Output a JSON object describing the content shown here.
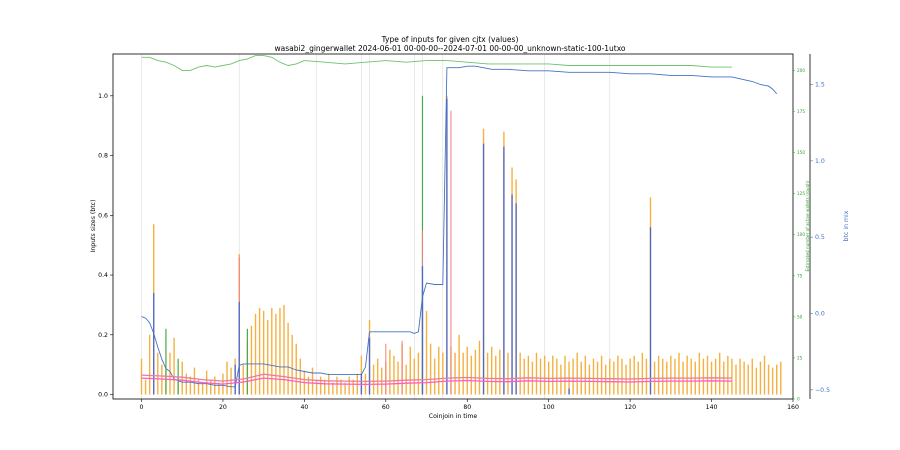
{
  "chart_data": {
    "type": "bar",
    "title": "Type of inputs for given cjtx (values)",
    "subtitle": "wasabi2_gingerwallet 2024-06-01 00-00-00--2024-07-01 00-00-00_unknown-static-100-1utxo",
    "xlabel": "Coinjoin in time",
    "ylabel": "Inputs sizes (btc)",
    "y2label": "Estimated number of active wallets (rough)",
    "y3label": "btc in mix",
    "xlim": [
      -7,
      160
    ],
    "ylim": [
      -0.015,
      1.14
    ],
    "y2lim": [
      0,
      210
    ],
    "y3lim": [
      -0.56,
      1.7
    ],
    "x_ticks": [
      0,
      20,
      40,
      60,
      80,
      100,
      120,
      140,
      160
    ],
    "y_ticks": [
      0.0,
      0.2,
      0.4,
      0.6,
      0.8,
      1.0
    ],
    "y2_ticks": [
      0,
      25,
      50,
      75,
      100,
      125,
      150,
      175,
      200
    ],
    "y3_ticks": [
      -0.5,
      0.0,
      0.5,
      1.0,
      1.5
    ],
    "vlines": [
      0,
      24,
      43,
      54,
      56,
      67,
      69,
      74,
      99,
      115
    ],
    "bars_orange": [
      {
        "x": 0,
        "v": 0.12
      },
      {
        "x": 1,
        "v": 0.05
      },
      {
        "x": 2,
        "v": 0.2
      },
      {
        "x": 3,
        "v": 0.57
      },
      {
        "x": 4,
        "v": 0.14
      },
      {
        "x": 5,
        "v": 0.1
      },
      {
        "x": 6,
        "v": 0.08
      },
      {
        "x": 7,
        "v": 0.14
      },
      {
        "x": 8,
        "v": 0.19
      },
      {
        "x": 9,
        "v": 0.06
      },
      {
        "x": 10,
        "v": 0.11
      },
      {
        "x": 11,
        "v": 0.07
      },
      {
        "x": 12,
        "v": 0.06
      },
      {
        "x": 13,
        "v": 0.09
      },
      {
        "x": 14,
        "v": 0.05
      },
      {
        "x": 15,
        "v": 0.04
      },
      {
        "x": 16,
        "v": 0.08
      },
      {
        "x": 17,
        "v": 0.05
      },
      {
        "x": 18,
        "v": 0.06
      },
      {
        "x": 19,
        "v": 0.04
      },
      {
        "x": 20,
        "v": 0.07
      },
      {
        "x": 21,
        "v": 0.11
      },
      {
        "x": 22,
        "v": 0.09
      },
      {
        "x": 23,
        "v": 0.12
      },
      {
        "x": 24,
        "v": 0.47
      },
      {
        "x": 25,
        "v": 0.1
      },
      {
        "x": 26,
        "v": 0.18
      },
      {
        "x": 27,
        "v": 0.23
      },
      {
        "x": 28,
        "v": 0.27
      },
      {
        "x": 29,
        "v": 0.29
      },
      {
        "x": 30,
        "v": 0.28
      },
      {
        "x": 31,
        "v": 0.25
      },
      {
        "x": 32,
        "v": 0.29
      },
      {
        "x": 33,
        "v": 0.27
      },
      {
        "x": 34,
        "v": 0.29
      },
      {
        "x": 35,
        "v": 0.3
      },
      {
        "x": 36,
        "v": 0.24
      },
      {
        "x": 37,
        "v": 0.2
      },
      {
        "x": 38,
        "v": 0.17
      },
      {
        "x": 39,
        "v": 0.12
      },
      {
        "x": 40,
        "v": 0.08
      },
      {
        "x": 41,
        "v": 0.06
      },
      {
        "x": 42,
        "v": 0.09
      },
      {
        "x": 43,
        "v": 0.05
      },
      {
        "x": 44,
        "v": 0.06
      },
      {
        "x": 45,
        "v": 0.05
      },
      {
        "x": 46,
        "v": 0.07
      },
      {
        "x": 47,
        "v": 0.04
      },
      {
        "x": 48,
        "v": 0.06
      },
      {
        "x": 49,
        "v": 0.05
      },
      {
        "x": 50,
        "v": 0.04
      },
      {
        "x": 51,
        "v": 0.06
      },
      {
        "x": 52,
        "v": 0.05
      },
      {
        "x": 53,
        "v": 0.07
      },
      {
        "x": 54,
        "v": 0.13
      },
      {
        "x": 55,
        "v": 0.07
      },
      {
        "x": 56,
        "v": 0.25
      },
      {
        "x": 57,
        "v": 0.1
      },
      {
        "x": 58,
        "v": 0.12
      },
      {
        "x": 59,
        "v": 0.09
      },
      {
        "x": 60,
        "v": 0.11
      },
      {
        "x": 61,
        "v": 0.15
      },
      {
        "x": 62,
        "v": 0.13
      },
      {
        "x": 63,
        "v": 0.11
      },
      {
        "x": 64,
        "v": 0.17
      },
      {
        "x": 65,
        "v": 0.1
      },
      {
        "x": 66,
        "v": 0.16
      },
      {
        "x": 67,
        "v": 0.12
      },
      {
        "x": 68,
        "v": 0.14
      },
      {
        "x": 69,
        "v": 0.35
      },
      {
        "x": 70,
        "v": 0.28
      },
      {
        "x": 71,
        "v": 0.17
      },
      {
        "x": 72,
        "v": 0.12
      },
      {
        "x": 73,
        "v": 0.16
      },
      {
        "x": 74,
        "v": 0.14
      },
      {
        "x": 75,
        "v": 1.0
      },
      {
        "x": 76,
        "v": 0.16
      },
      {
        "x": 77,
        "v": 0.14
      },
      {
        "x": 78,
        "v": 0.2
      },
      {
        "x": 79,
        "v": 0.14
      },
      {
        "x": 80,
        "v": 0.16
      },
      {
        "x": 81,
        "v": 0.13
      },
      {
        "x": 82,
        "v": 0.15
      },
      {
        "x": 83,
        "v": 0.18
      },
      {
        "x": 84,
        "v": 0.89
      },
      {
        "x": 85,
        "v": 0.14
      },
      {
        "x": 86,
        "v": 0.16
      },
      {
        "x": 87,
        "v": 0.13
      },
      {
        "x": 88,
        "v": 0.15
      },
      {
        "x": 89,
        "v": 0.88
      },
      {
        "x": 90,
        "v": 0.14
      },
      {
        "x": 91,
        "v": 0.76
      },
      {
        "x": 92,
        "v": 0.72
      },
      {
        "x": 93,
        "v": 0.14
      },
      {
        "x": 94,
        "v": 0.12
      },
      {
        "x": 95,
        "v": 0.13
      },
      {
        "x": 96,
        "v": 0.11
      },
      {
        "x": 97,
        "v": 0.14
      },
      {
        "x": 98,
        "v": 0.12
      },
      {
        "x": 99,
        "v": 0.13
      },
      {
        "x": 100,
        "v": 0.11
      },
      {
        "x": 101,
        "v": 0.13
      },
      {
        "x": 102,
        "v": 0.12
      },
      {
        "x": 103,
        "v": 0.1
      },
      {
        "x": 104,
        "v": 0.13
      },
      {
        "x": 105,
        "v": 0.11
      },
      {
        "x": 106,
        "v": 0.12
      },
      {
        "x": 107,
        "v": 0.14
      },
      {
        "x": 108,
        "v": 0.11
      },
      {
        "x": 109,
        "v": 0.13
      },
      {
        "x": 110,
        "v": 0.1
      },
      {
        "x": 111,
        "v": 0.12
      },
      {
        "x": 112,
        "v": 0.11
      },
      {
        "x": 113,
        "v": 0.13
      },
      {
        "x": 114,
        "v": 0.1
      },
      {
        "x": 115,
        "v": 0.12
      },
      {
        "x": 116,
        "v": 0.11
      },
      {
        "x": 117,
        "v": 0.13
      },
      {
        "x": 118,
        "v": 0.12
      },
      {
        "x": 119,
        "v": 0.1
      },
      {
        "x": 120,
        "v": 0.12
      },
      {
        "x": 121,
        "v": 0.13
      },
      {
        "x": 122,
        "v": 0.11
      },
      {
        "x": 123,
        "v": 0.14
      },
      {
        "x": 124,
        "v": 0.12
      },
      {
        "x": 125,
        "v": 0.66
      },
      {
        "x": 126,
        "v": 0.11
      },
      {
        "x": 127,
        "v": 0.13
      },
      {
        "x": 128,
        "v": 0.12
      },
      {
        "x": 129,
        "v": 0.11
      },
      {
        "x": 130,
        "v": 0.13
      },
      {
        "x": 131,
        "v": 0.12
      },
      {
        "x": 132,
        "v": 0.14
      },
      {
        "x": 133,
        "v": 0.11
      },
      {
        "x": 134,
        "v": 0.13
      },
      {
        "x": 135,
        "v": 0.12
      },
      {
        "x": 136,
        "v": 0.11
      },
      {
        "x": 137,
        "v": 0.14
      },
      {
        "x": 138,
        "v": 0.12
      },
      {
        "x": 139,
        "v": 0.13
      },
      {
        "x": 140,
        "v": 0.11
      },
      {
        "x": 141,
        "v": 0.12
      },
      {
        "x": 142,
        "v": 0.14
      },
      {
        "x": 143,
        "v": 0.11
      },
      {
        "x": 144,
        "v": 0.13
      },
      {
        "x": 145,
        "v": 0.12
      },
      {
        "x": 146,
        "v": 0.1
      },
      {
        "x": 147,
        "v": 0.12
      },
      {
        "x": 148,
        "v": 0.11
      },
      {
        "x": 149,
        "v": 0.1
      },
      {
        "x": 150,
        "v": 0.12
      },
      {
        "x": 151,
        "v": 0.09
      },
      {
        "x": 152,
        "v": 0.11
      },
      {
        "x": 153,
        "v": 0.13
      },
      {
        "x": 154,
        "v": 0.1
      },
      {
        "x": 155,
        "v": 0.09
      },
      {
        "x": 156,
        "v": 0.1
      },
      {
        "x": 157,
        "v": 0.11
      }
    ],
    "bars_blue": [
      {
        "x": 3,
        "v": 0.34
      },
      {
        "x": 24,
        "v": 0.31
      },
      {
        "x": 56,
        "v": 0.19
      },
      {
        "x": 69,
        "v": 0.43
      },
      {
        "x": 75,
        "v": 0.99
      },
      {
        "x": 84,
        "v": 0.84
      },
      {
        "x": 89,
        "v": 0.83
      },
      {
        "x": 91,
        "v": 0.67
      },
      {
        "x": 92,
        "v": 0.64
      },
      {
        "x": 125,
        "v": 0.56
      },
      {
        "x": 23,
        "v": 0.1
      },
      {
        "x": 54,
        "v": 0.07
      },
      {
        "x": 105,
        "v": 0.02
      }
    ],
    "bars_green": [
      {
        "x": 6,
        "v": 0.22
      },
      {
        "x": 26,
        "v": 0.22
      },
      {
        "x": 69,
        "v": 1.0
      },
      {
        "x": 9,
        "v": 0.12
      }
    ],
    "bars_red": [
      {
        "x": 24,
        "v": 0.46
      },
      {
        "x": 69,
        "v": 0.55
      },
      {
        "x": 76,
        "v": 0.95
      },
      {
        "x": 64,
        "v": 0.18
      },
      {
        "x": 89,
        "v": 0.8
      },
      {
        "x": 60,
        "v": 0.17
      }
    ],
    "series": [
      {
        "axis": "y3",
        "color": "#4472c4",
        "x": [
          0,
          1,
          2,
          3,
          4,
          5,
          6,
          7,
          8,
          9,
          10,
          12,
          14,
          16,
          18,
          20,
          22,
          23,
          24,
          25,
          26,
          28,
          30,
          32,
          34,
          36,
          38,
          40,
          42,
          44,
          46,
          48,
          50,
          52,
          54,
          55,
          56,
          58,
          60,
          62,
          64,
          66,
          67,
          68,
          69,
          70,
          72,
          74,
          75,
          78,
          80,
          82,
          84,
          86,
          90,
          95,
          100,
          105,
          110,
          115,
          120,
          125,
          130,
          135,
          140,
          145,
          150,
          152,
          154,
          155,
          156
        ],
        "y": [
          -0.02,
          -0.03,
          -0.06,
          -0.13,
          -0.22,
          -0.3,
          -0.36,
          -0.38,
          -0.43,
          -0.44,
          -0.45,
          -0.45,
          -0.46,
          -0.46,
          -0.47,
          -0.47,
          -0.48,
          -0.48,
          -0.34,
          -0.33,
          -0.33,
          -0.33,
          -0.33,
          -0.34,
          -0.35,
          -0.35,
          -0.37,
          -0.38,
          -0.39,
          -0.39,
          -0.4,
          -0.4,
          -0.4,
          -0.4,
          -0.4,
          -0.35,
          -0.12,
          -0.12,
          -0.12,
          -0.12,
          -0.12,
          -0.12,
          -0.13,
          -0.12,
          0.11,
          0.2,
          0.19,
          0.19,
          1.61,
          1.61,
          1.62,
          1.62,
          1.61,
          1.6,
          1.6,
          1.59,
          1.59,
          1.58,
          1.58,
          1.58,
          1.57,
          1.57,
          1.56,
          1.56,
          1.55,
          1.55,
          1.52,
          1.5,
          1.49,
          1.47,
          1.44
        ]
      },
      {
        "axis": "y2",
        "color": "#6fc06f",
        "x": [
          0,
          2,
          4,
          6,
          8,
          10,
          12,
          14,
          16,
          18,
          20,
          22,
          24,
          26,
          28,
          30,
          32,
          34,
          36,
          38,
          40,
          45,
          50,
          55,
          60,
          65,
          70,
          75,
          80,
          85,
          90,
          95,
          100,
          105,
          110,
          115,
          120,
          125,
          130,
          135,
          140,
          143,
          145
        ],
        "y": [
          208,
          208,
          206,
          205,
          203,
          200,
          200,
          202,
          203,
          202,
          203,
          204,
          206,
          207,
          209,
          209,
          208,
          205,
          203,
          204,
          206,
          205,
          204,
          205,
          206,
          205,
          206,
          206,
          205,
          204,
          204,
          204,
          204,
          203,
          203,
          203,
          203,
          203,
          203,
          203,
          202,
          202,
          202
        ]
      },
      {
        "axis": "y",
        "color": "#ff5cc8",
        "x": [
          0,
          5,
          10,
          15,
          20,
          25,
          30,
          35,
          40,
          45,
          50,
          55,
          60,
          65,
          70,
          75,
          80,
          85,
          90,
          95,
          100,
          105,
          110,
          115,
          120,
          125,
          130,
          135,
          140,
          145
        ],
        "y": [
          0.055,
          0.052,
          0.048,
          0.04,
          0.035,
          0.042,
          0.055,
          0.05,
          0.04,
          0.036,
          0.035,
          0.034,
          0.035,
          0.038,
          0.04,
          0.045,
          0.047,
          0.044,
          0.043,
          0.046,
          0.044,
          0.045,
          0.044,
          0.043,
          0.042,
          0.044,
          0.045,
          0.045,
          0.046,
          0.045
        ]
      },
      {
        "axis": "y",
        "color": "#e87da0",
        "x": [
          0,
          5,
          10,
          15,
          20,
          25,
          30,
          35,
          40,
          45,
          50,
          55,
          60,
          65,
          70,
          75,
          80,
          85,
          90,
          95,
          100,
          105,
          110,
          115,
          120,
          125,
          130,
          135,
          140,
          145
        ],
        "y": [
          0.065,
          0.062,
          0.058,
          0.05,
          0.045,
          0.052,
          0.068,
          0.06,
          0.05,
          0.046,
          0.045,
          0.044,
          0.045,
          0.048,
          0.05,
          0.055,
          0.057,
          0.054,
          0.053,
          0.056,
          0.054,
          0.055,
          0.054,
          0.053,
          0.052,
          0.054,
          0.055,
          0.055,
          0.056,
          0.055
        ]
      }
    ]
  }
}
